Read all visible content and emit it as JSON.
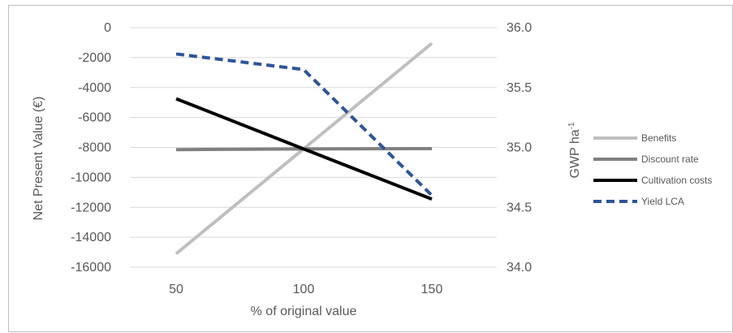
{
  "chart_data": {
    "type": "line",
    "x": [
      50,
      100,
      150
    ],
    "xlabel": "% of original value",
    "ylabel_left": "Net Present Value (€)",
    "ylabel_right_main": "GWP ha",
    "ylabel_right_sup": "-1",
    "ylim_left": [
      -16000,
      0
    ],
    "yticks_left": [
      0,
      -2000,
      -4000,
      -6000,
      -8000,
      -10000,
      -12000,
      -14000,
      -16000
    ],
    "ytick_labels_left": [
      "0",
      "-2000",
      "-4000",
      "-6000",
      "-8000",
      "-10000",
      "-12000",
      "-14000",
      "-16000"
    ],
    "ylim_right": [
      34.0,
      36.0
    ],
    "yticks_right": [
      34.0,
      34.5,
      35.0,
      35.5,
      36.0
    ],
    "ytick_labels_right": [
      "34.0",
      "34.5",
      "35.0",
      "35.5",
      "36.0"
    ],
    "xtick_labels": [
      "50",
      "100",
      "150"
    ],
    "grid": true,
    "legend_position": "right",
    "series": [
      {
        "name": "Benefits",
        "axis": "left",
        "values": [
          -15100,
          -8100,
          -1050
        ],
        "color": "#bfbfbf",
        "dash": "solid"
      },
      {
        "name": "Discount rate",
        "axis": "left",
        "values": [
          -8150,
          -8100,
          -8080
        ],
        "color": "#808080",
        "dash": "solid"
      },
      {
        "name": "Cultivation costs",
        "axis": "left",
        "values": [
          -4750,
          -8100,
          -11450
        ],
        "color": "#000000",
        "dash": "solid"
      },
      {
        "name": "Yield LCA",
        "axis": "right",
        "values": [
          35.78,
          35.65,
          34.6
        ],
        "color": "#2f5597",
        "dash": "dashed"
      }
    ]
  }
}
